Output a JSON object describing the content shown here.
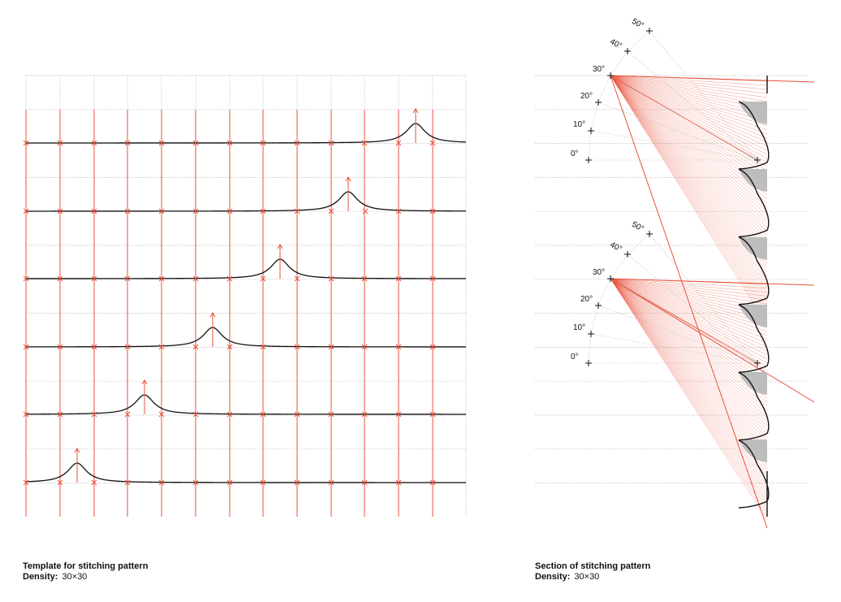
{
  "left_panel": {
    "caption_title": "Template for stitching pattern",
    "density_label": "Density:",
    "density_value": "30×30"
  },
  "right_panel": {
    "caption_title": "Section of stitching pattern",
    "density_label": "Density:",
    "density_value": "30×30",
    "angle_labels": [
      "0°",
      "10°",
      "20°",
      "30°",
      "40°",
      "50°"
    ]
  },
  "colors": {
    "accent": "#e8503a",
    "grid": "#bdbdbd",
    "ink": "#111111",
    "fill": "#bdbdbd"
  }
}
